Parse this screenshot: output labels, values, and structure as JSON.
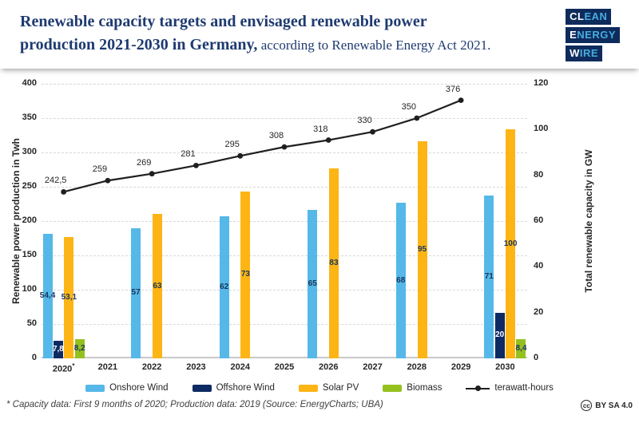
{
  "header": {
    "title_line1": "Renewable capacity targets and envisaged renewable power",
    "title_line2_bold": "production 2021-2030 in Germany,",
    "title_line2_regular": " according to Renewable Energy Act 2021.",
    "logo": {
      "line1_highlight": "CL",
      "line1_rest": "EAN",
      "line2_highlight": "E",
      "line2_rest": "NERGY",
      "line3_highlight": "W",
      "line3_rest": "IRE"
    }
  },
  "footnote": "* Capacity data: First 9 months of 2020; Production data: 2019 (Source: EnergyCharts; UBA)",
  "license": {
    "cc": "cc",
    "text": "BY SA 4.0"
  },
  "chart_data": {
    "type": "bar+line",
    "categories": [
      "2020*",
      "2021",
      "2022",
      "2023",
      "2024",
      "2025",
      "2026",
      "2027",
      "2028",
      "2029",
      "2030"
    ],
    "bar_series": [
      {
        "name": "Onshore Wind",
        "color": "#55b8e8",
        "label_color": "#17365d",
        "values": [
          54.4,
          null,
          57,
          null,
          62,
          null,
          65,
          null,
          68,
          null,
          71
        ],
        "labels": [
          "54,4",
          null,
          "57",
          null,
          "62",
          null,
          "65",
          null,
          "68",
          null,
          "71"
        ]
      },
      {
        "name": "Offshore Wind",
        "color": "#0d2a63",
        "label_color": "#ffffff",
        "values": [
          7.8,
          null,
          null,
          null,
          null,
          null,
          null,
          null,
          null,
          null,
          20
        ],
        "labels": [
          "7,8",
          null,
          null,
          null,
          null,
          null,
          null,
          null,
          null,
          null,
          "20"
        ]
      },
      {
        "name": "Solar PV",
        "color": "#fdb515",
        "label_color": "#17365d",
        "values": [
          53.1,
          null,
          63,
          null,
          73,
          null,
          83,
          null,
          95,
          null,
          100
        ],
        "labels": [
          "53,1",
          null,
          "63",
          null,
          "73",
          null,
          "83",
          null,
          "95",
          null,
          "100"
        ]
      },
      {
        "name": "Biomass",
        "color": "#95c11f",
        "label_color": "#17365d",
        "values": [
          8.2,
          null,
          null,
          null,
          null,
          null,
          null,
          null,
          null,
          null,
          8.4
        ],
        "labels": [
          "8,2",
          null,
          null,
          null,
          null,
          null,
          null,
          null,
          null,
          null,
          "8,4"
        ]
      }
    ],
    "line_series": {
      "name": "terawatt-hours",
      "color": "#1f1f1f",
      "values": [
        242.5,
        259,
        269,
        281,
        295,
        308,
        318,
        330,
        350,
        376,
        null
      ],
      "labels": [
        "242,5",
        "259",
        "269",
        "281",
        "295",
        "308",
        "318",
        "330",
        "350",
        "376",
        null
      ]
    },
    "left_axis": {
      "label": "Renewable power production in Twh",
      "min": 0,
      "max": 400,
      "step": 50
    },
    "right_axis": {
      "label": "Total renewable capacity in GW",
      "min": 0,
      "max": 120,
      "step": 20
    },
    "legend": [
      {
        "label": "Onshore Wind",
        "color": "#55b8e8",
        "kind": "bar"
      },
      {
        "label": "Offshore Wind",
        "color": "#0d2a63",
        "kind": "bar"
      },
      {
        "label": "Solar PV",
        "color": "#fdb515",
        "kind": "bar"
      },
      {
        "label": "Biomass",
        "color": "#95c11f",
        "kind": "bar"
      },
      {
        "label": "terawatt-hours",
        "color": "#1f1f1f",
        "kind": "line"
      }
    ],
    "grid": {
      "horizontal": "dashed",
      "follows": "left_axis"
    }
  }
}
